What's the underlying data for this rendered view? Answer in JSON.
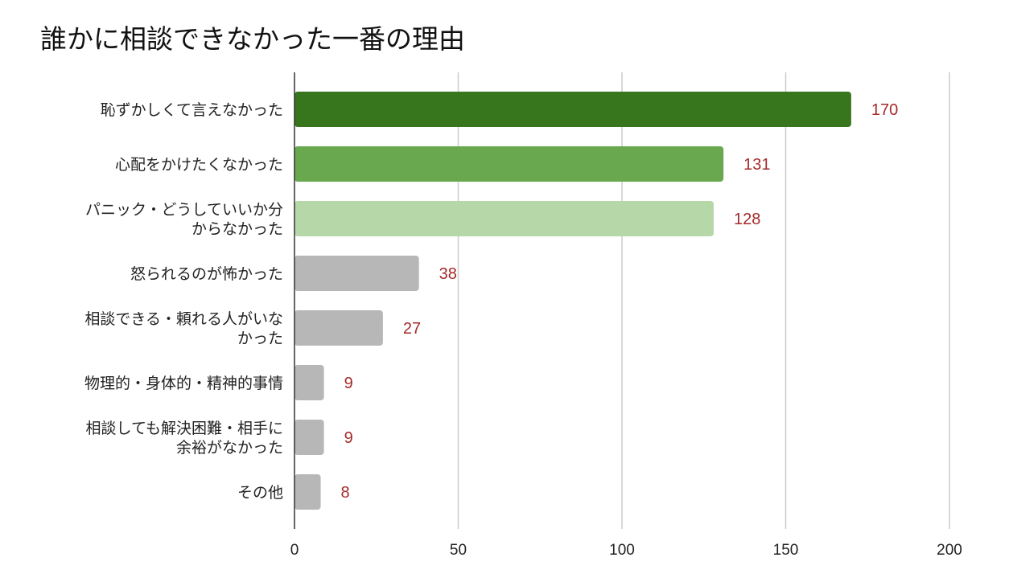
{
  "chart_data": {
    "type": "bar",
    "orientation": "horizontal",
    "title": "誰かに相談できなかった一番の理由",
    "categories": [
      "恥ずかしくて言えなかった",
      "心配をかけたくなかった",
      "パニック・どうしていいか分\nからなかった",
      "怒られるのが怖かった",
      "相談できる・頼れる人がいな\nかった",
      "物理的・身体的・精神的事情",
      "相談しても解決困難・相手に\n余裕がなかった",
      "その他"
    ],
    "values": [
      170,
      131,
      128,
      38,
      27,
      9,
      9,
      8
    ],
    "colors": [
      "#38761d",
      "#6aa84f",
      "#b6d7a8",
      "#b7b7b7",
      "#b7b7b7",
      "#b7b7b7",
      "#b7b7b7",
      "#b7b7b7"
    ],
    "label_color": "#a52a2a",
    "xlim": [
      0,
      200
    ],
    "xticks": [
      0,
      50,
      100,
      150,
      200
    ],
    "grid": true,
    "legend": "none",
    "data_labels": true
  }
}
